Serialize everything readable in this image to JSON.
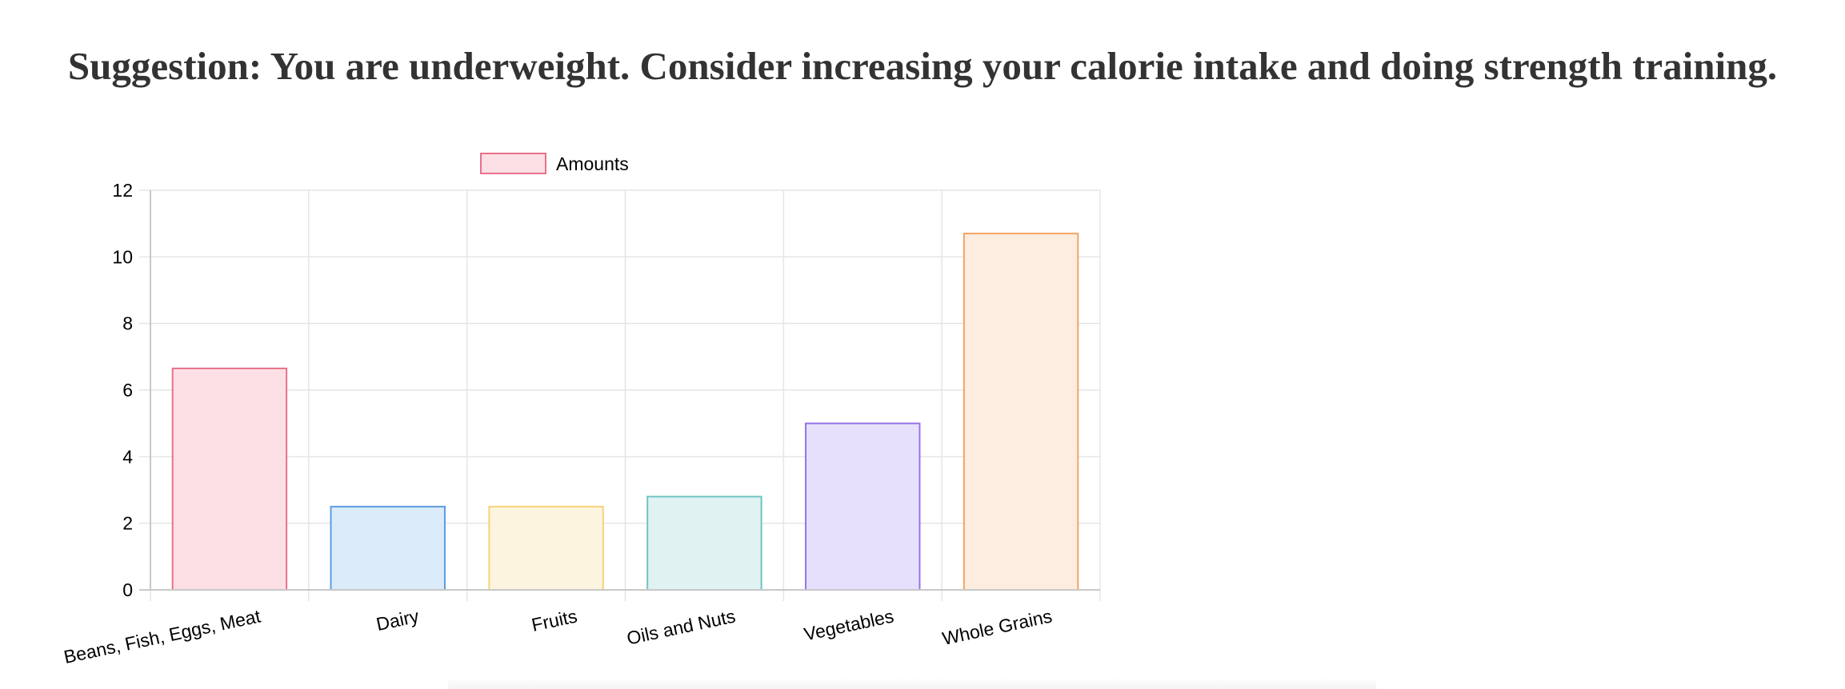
{
  "suggestion": {
    "text": "Suggestion: You are underweight. Consider increasing your calorie intake and doing strength training."
  },
  "chart_data": {
    "type": "bar",
    "categories": [
      "Beans, Fish, Eggs, Meat",
      "Dairy",
      "Fruits",
      "Oils and Nuts",
      "Vegetables",
      "Whole Grains"
    ],
    "series": [
      {
        "name": "Amounts",
        "values": [
          6.65,
          2.5,
          2.5,
          2.8,
          5.0,
          10.7
        ]
      }
    ],
    "legend": "Amounts",
    "legend_placement": "top",
    "ylim": [
      0,
      12
    ],
    "yticks": [
      0,
      2,
      4,
      6,
      8,
      10,
      12
    ],
    "grid": true,
    "colors": {
      "fills": [
        "#fce0e6",
        "#dbebfa",
        "#fdf4e0",
        "#e0f3f2",
        "#e7e0fd",
        "#fdede0"
      ],
      "borders": [
        "#e8718a",
        "#5b9ee0",
        "#f6d279",
        "#6ec4c2",
        "#9573e9",
        "#f2a465"
      ],
      "grid": "#e5e5e5",
      "axis": "#c8c8c8"
    }
  }
}
